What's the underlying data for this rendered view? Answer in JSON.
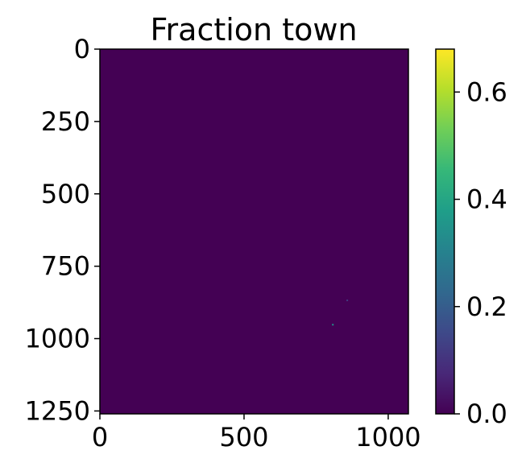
{
  "chart_data": {
    "type": "heatmap",
    "title": "Fraction town",
    "xlabel": "",
    "ylabel": "",
    "xlim": [
      0,
      1070
    ],
    "ylim": [
      1260,
      0
    ],
    "x_ticks": [
      {
        "value": 0,
        "label": "0"
      },
      {
        "value": 500,
        "label": "500"
      },
      {
        "value": 1000,
        "label": "1000"
      }
    ],
    "y_ticks": [
      {
        "value": 0,
        "label": "0"
      },
      {
        "value": 250,
        "label": "250"
      },
      {
        "value": 500,
        "label": "500"
      },
      {
        "value": 750,
        "label": "750"
      },
      {
        "value": 1000,
        "label": "1000"
      },
      {
        "value": 1250,
        "label": "1250"
      }
    ],
    "background_value": 0.0,
    "hotspots": [
      {
        "x": 808,
        "y": 952,
        "value": 0.35
      },
      {
        "x": 858,
        "y": 868,
        "value": 0.12
      }
    ],
    "colormap": "viridis",
    "colorbar": {
      "vmin": 0.0,
      "vmax": 0.68,
      "ticks": [
        {
          "value": 0.0,
          "label": "0.0"
        },
        {
          "value": 0.2,
          "label": "0.2"
        },
        {
          "value": 0.4,
          "label": "0.4"
        },
        {
          "value": 0.6,
          "label": "0.6"
        }
      ]
    },
    "grid": false
  },
  "colors": {
    "viridis_stops": [
      "#440154",
      "#482878",
      "#3e4989",
      "#31688e",
      "#26828e",
      "#1f9e89",
      "#35b779",
      "#6ece58",
      "#b5de2b",
      "#fde725"
    ],
    "axis": "#000000"
  }
}
